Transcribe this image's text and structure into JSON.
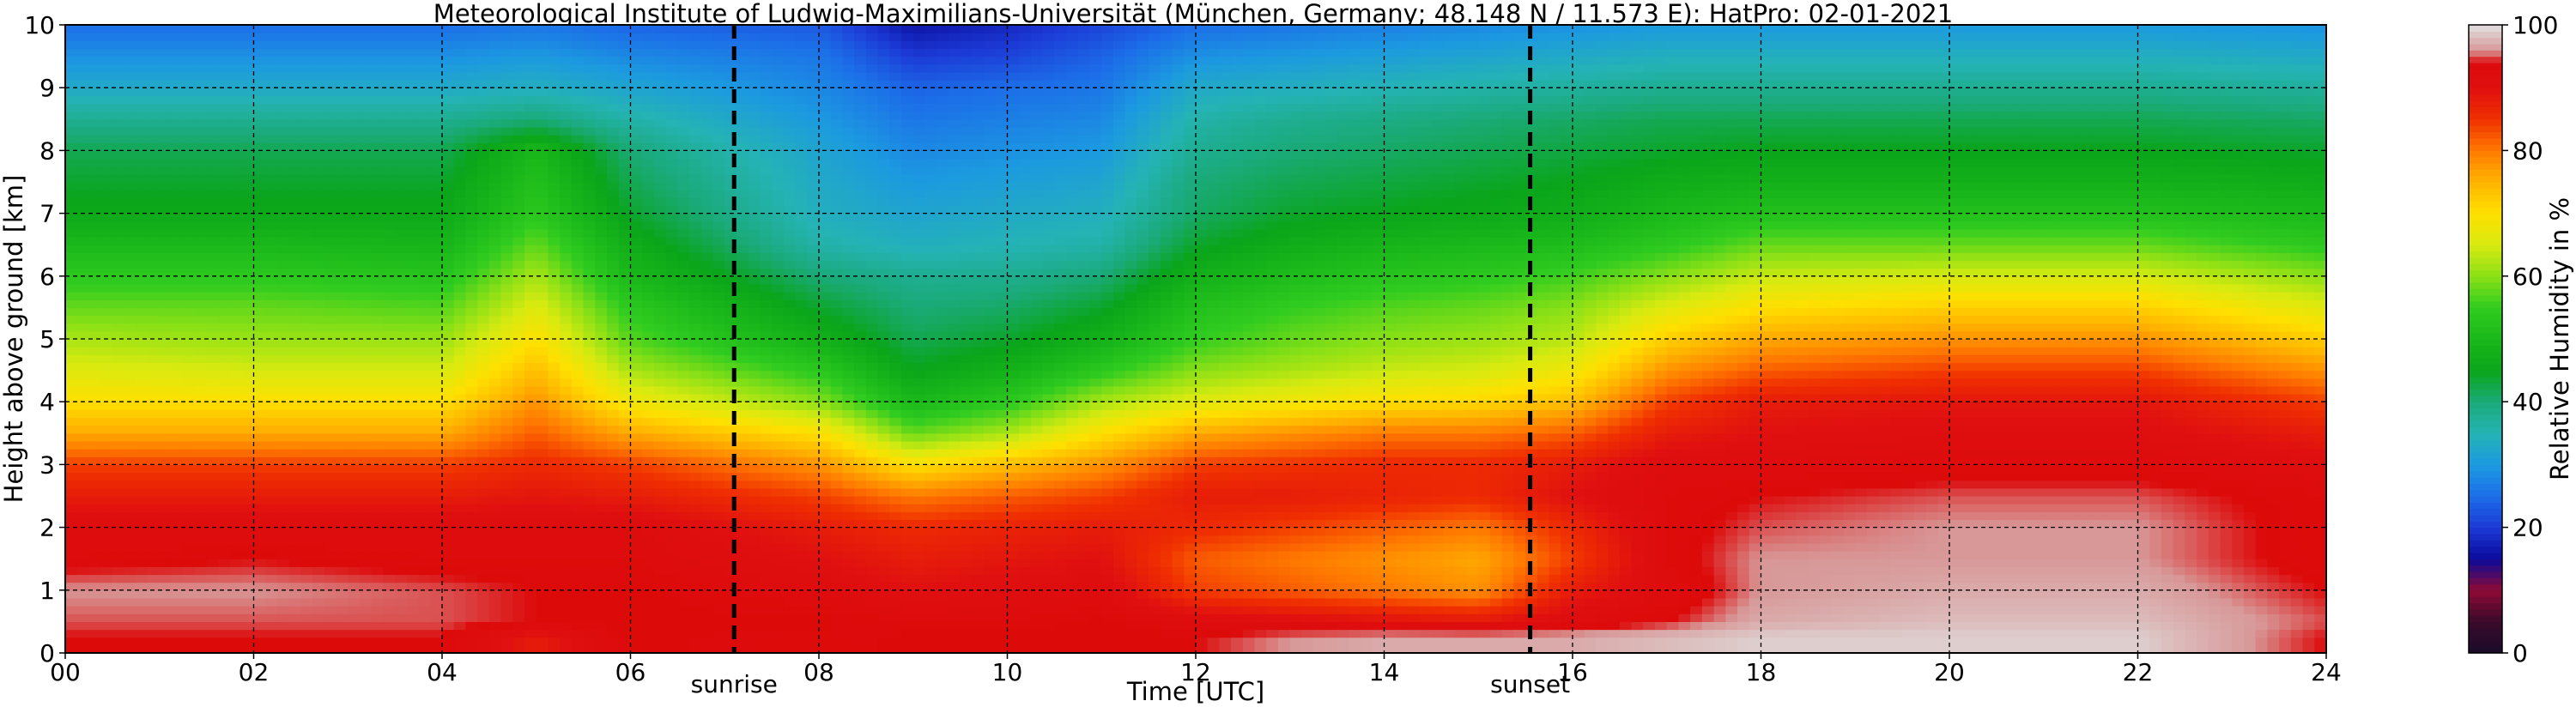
{
  "chart_data": {
    "type": "heatmap",
    "title": "Meteorological Institute of Ludwig-Maximilians-Universität (München, Germany; 48.148 N / 11.573 E):    HatPro: 02-01-2021",
    "xlabel": "Time [UTC]",
    "ylabel": "Height above ground [km]",
    "colorbar_label": "Relative Humidity in %",
    "xlim": [
      0,
      24
    ],
    "ylim": [
      0,
      10
    ],
    "zlim": [
      0,
      100
    ],
    "x_ticks": [
      "00",
      "02",
      "04",
      "06",
      "08",
      "10",
      "12",
      "14",
      "16",
      "18",
      "20",
      "22",
      "24"
    ],
    "y_ticks": [
      "0",
      "1",
      "2",
      "3",
      "4",
      "5",
      "6",
      "7",
      "8",
      "9",
      "10"
    ],
    "colorbar_ticks": [
      "0",
      "20",
      "40",
      "60",
      "80",
      "100"
    ],
    "grid": true,
    "events": [
      {
        "label": "sunrise",
        "x": 7.1
      },
      {
        "label": "sunset",
        "x": 15.55
      }
    ],
    "colormap": [
      {
        "value": 0,
        "color": "#1a0b2a"
      },
      {
        "value": 5,
        "color": "#3a0a2a"
      },
      {
        "value": 10,
        "color": "#8e0a35"
      },
      {
        "value": 15,
        "color": "#0a0a9a"
      },
      {
        "value": 20,
        "color": "#1c3ad6"
      },
      {
        "value": 25,
        "color": "#1c6ee8"
      },
      {
        "value": 30,
        "color": "#1c9ae0"
      },
      {
        "value": 35,
        "color": "#25b3b5"
      },
      {
        "value": 40,
        "color": "#1aaa78"
      },
      {
        "value": 45,
        "color": "#0aa51a"
      },
      {
        "value": 50,
        "color": "#1ab81a"
      },
      {
        "value": 55,
        "color": "#30cc20"
      },
      {
        "value": 60,
        "color": "#8ae016"
      },
      {
        "value": 65,
        "color": "#d8ea10"
      },
      {
        "value": 70,
        "color": "#ffe000"
      },
      {
        "value": 75,
        "color": "#ffb400"
      },
      {
        "value": 80,
        "color": "#ff7a00"
      },
      {
        "value": 85,
        "color": "#f03000"
      },
      {
        "value": 90,
        "color": "#e01010"
      },
      {
        "value": 94,
        "color": "#dd0a0a"
      },
      {
        "value": 96,
        "color": "#d89898"
      },
      {
        "value": 100,
        "color": "#e0e0e0"
      }
    ],
    "height_km": [
      0.25,
      0.5,
      1.0,
      1.5,
      2.0,
      2.5,
      3.0,
      3.5,
      4.0,
      4.5,
      5.0,
      5.5,
      6.0,
      6.5,
      7.0,
      7.5,
      8.0,
      8.5,
      9.0,
      9.5,
      10.0
    ],
    "profiles": [
      {
        "time": 0,
        "rh": [
          94,
          95,
          96,
          93,
          92,
          88,
          84,
          76,
          70,
          66,
          62,
          58,
          54,
          50,
          46,
          44,
          42,
          38,
          33,
          29,
          25
        ]
      },
      {
        "time": 2,
        "rh": [
          94,
          95,
          96,
          94,
          92,
          88,
          84,
          76,
          70,
          65,
          61,
          58,
          54,
          50,
          46,
          44,
          42,
          38,
          33,
          29,
          25
        ]
      },
      {
        "time": 4,
        "rh": [
          94,
          95,
          95,
          93,
          92,
          88,
          84,
          76,
          70,
          65,
          61,
          57,
          53,
          49,
          46,
          44,
          42,
          38,
          33,
          29,
          25
        ]
      },
      {
        "time": 5,
        "rh": [
          88,
          94,
          94,
          93,
          92,
          89,
          86,
          82,
          78,
          74,
          70,
          66,
          62,
          58,
          54,
          52,
          50,
          40,
          34,
          30,
          26
        ]
      },
      {
        "time": 6,
        "rh": [
          94,
          94,
          94,
          93,
          92,
          88,
          84,
          76,
          68,
          62,
          57,
          54,
          50,
          47,
          44,
          42,
          40,
          36,
          32,
          28,
          24
        ]
      },
      {
        "time": 8,
        "rh": [
          93,
          94,
          92,
          90,
          88,
          84,
          78,
          70,
          60,
          54,
          48,
          44,
          40,
          36,
          34,
          33,
          32,
          30,
          28,
          26,
          23
        ]
      },
      {
        "time": 9,
        "rh": [
          94,
          93,
          90,
          88,
          86,
          80,
          70,
          58,
          50,
          45,
          42,
          40,
          38,
          34,
          32,
          30,
          28,
          26,
          24,
          20,
          16
        ]
      },
      {
        "time": 10,
        "rh": [
          94,
          93,
          91,
          89,
          87,
          82,
          74,
          62,
          54,
          48,
          44,
          41,
          38,
          35,
          33,
          31,
          29,
          27,
          25,
          21,
          18
        ]
      },
      {
        "time": 11,
        "rh": [
          94,
          94,
          92,
          90,
          88,
          84,
          78,
          70,
          62,
          54,
          48,
          44,
          40,
          36,
          34,
          32,
          30,
          28,
          26,
          24,
          21
        ]
      },
      {
        "time": 12,
        "rh": [
          94,
          92,
          84,
          82,
          86,
          88,
          84,
          76,
          66,
          60,
          55,
          52,
          48,
          44,
          41,
          40,
          38,
          36,
          33,
          29,
          25
        ]
      },
      {
        "time": 13,
        "rh": [
          96,
          91,
          82,
          80,
          84,
          88,
          85,
          78,
          68,
          62,
          58,
          55,
          51,
          47,
          44,
          42,
          40,
          38,
          34,
          30,
          26
        ]
      },
      {
        "time": 14,
        "rh": [
          97,
          90,
          80,
          78,
          82,
          87,
          86,
          80,
          70,
          64,
          60,
          57,
          53,
          49,
          45,
          43,
          41,
          39,
          35,
          31,
          27
        ]
      },
      {
        "time": 15,
        "rh": [
          97,
          89,
          78,
          76,
          80,
          86,
          86,
          80,
          71,
          65,
          61,
          58,
          54,
          50,
          46,
          44,
          42,
          40,
          36,
          32,
          28
        ]
      },
      {
        "time": 16,
        "rh": [
          97,
          92,
          88,
          84,
          86,
          90,
          88,
          82,
          74,
          68,
          63,
          60,
          56,
          51,
          47,
          45,
          43,
          41,
          37,
          33,
          29
        ]
      },
      {
        "time": 17,
        "rh": [
          98,
          94,
          92,
          93,
          93,
          93,
          92,
          88,
          84,
          78,
          72,
          66,
          60,
          54,
          50,
          47,
          44,
          42,
          38,
          34,
          30
        ]
      },
      {
        "time": 18,
        "rh": [
          99,
          97,
          96,
          96,
          95,
          94,
          92,
          90,
          88,
          82,
          76,
          70,
          64,
          58,
          52,
          48,
          45,
          42,
          38,
          34,
          30
        ]
      },
      {
        "time": 20,
        "rh": [
          99,
          98,
          97,
          96,
          96,
          95,
          93,
          91,
          89,
          84,
          78,
          72,
          65,
          58,
          52,
          48,
          45,
          42,
          38,
          34,
          30
        ]
      },
      {
        "time": 22,
        "rh": [
          99,
          98,
          97,
          96,
          96,
          95,
          93,
          91,
          89,
          84,
          78,
          72,
          65,
          58,
          52,
          48,
          45,
          42,
          38,
          34,
          30
        ]
      },
      {
        "time": 24,
        "rh": [
          94,
          95,
          94,
          93,
          93,
          93,
          91,
          88,
          84,
          78,
          72,
          66,
          60,
          54,
          50,
          47,
          44,
          41,
          37,
          33,
          29
        ]
      }
    ]
  }
}
